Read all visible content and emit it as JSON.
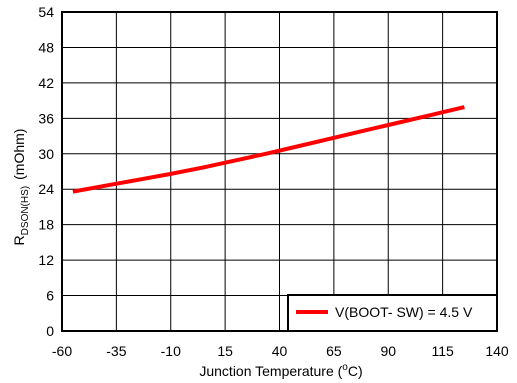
{
  "chart_data": {
    "type": "line",
    "title": "",
    "xlabel": "Junction Temperature (°C)",
    "xlabel_parts": {
      "before": "Junction Temperature (",
      "superscript": "o",
      "after": "C)"
    },
    "ylabel": "R_DSON(HS) (mOhm)",
    "ylabel_parts": {
      "main": "R",
      "subscript": "DSON(HS)",
      "unit": "(mOhm)"
    },
    "xlim": [
      -60,
      140
    ],
    "ylim": [
      0,
      54
    ],
    "xticks": [
      -60,
      -35,
      -10,
      15,
      40,
      65,
      90,
      115,
      140
    ],
    "yticks": [
      0,
      6,
      12,
      18,
      24,
      30,
      36,
      42,
      48,
      54
    ],
    "grid": true,
    "legend_position": "bottom-right",
    "series": [
      {
        "name": "V(BOOT- SW) = 4.5 V",
        "color": "#ff0000",
        "x": [
          -55,
          -40,
          -25,
          -10,
          5,
          20,
          35,
          50,
          65,
          80,
          95,
          110,
          125
        ],
        "y": [
          23.6,
          24.6,
          25.6,
          26.6,
          27.7,
          28.9,
          30.1,
          31.4,
          32.7,
          34.0,
          35.3,
          36.6,
          37.9
        ]
      }
    ]
  }
}
